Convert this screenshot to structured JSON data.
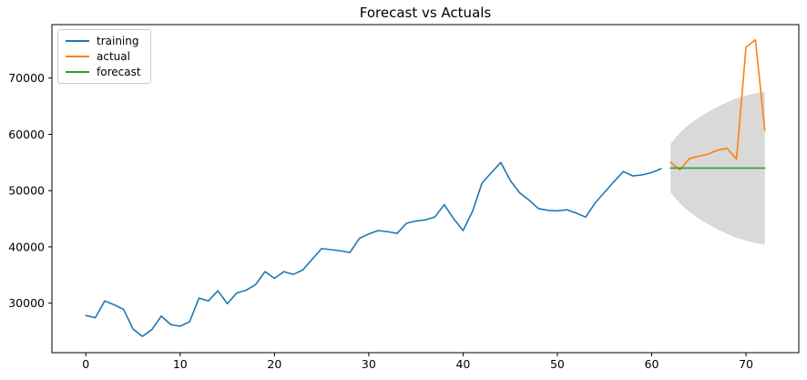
{
  "chart_data": {
    "type": "line",
    "title": "Forecast vs Actuals",
    "xlabel": "",
    "ylabel": "",
    "grid": false,
    "xlim": [
      -3.6,
      75.6
    ],
    "ylim": [
      21200,
      79500
    ],
    "xticks": [
      0,
      10,
      20,
      30,
      40,
      50,
      60,
      70
    ],
    "yticks": [
      30000,
      40000,
      50000,
      60000,
      70000
    ],
    "legend": {
      "position": "upper-left",
      "entries": [
        "training",
        "actual",
        "forecast"
      ]
    },
    "series": [
      {
        "name": "training",
        "color": "#1f77b4",
        "x_start": 0,
        "values": [
          27800,
          27400,
          30400,
          29700,
          28900,
          25400,
          24100,
          25300,
          27700,
          26200,
          25900,
          26700,
          30900,
          30400,
          32200,
          29900,
          31800,
          32300,
          33300,
          35600,
          34400,
          35600,
          35100,
          35900,
          37800,
          39700,
          39500,
          39300,
          39000,
          41500,
          42300,
          42900,
          42700,
          42400,
          44200,
          44600,
          44800,
          45300,
          47500,
          45000,
          42900,
          46300,
          51300,
          53200,
          55000,
          51800,
          49600,
          48300,
          46800,
          46500,
          46400,
          46600,
          46000,
          45300,
          47800,
          49700,
          51600,
          53400,
          52600,
          52800,
          53200,
          53900
        ]
      },
      {
        "name": "actual",
        "color": "#ff7f0e",
        "x_start": 62,
        "values": [
          55000,
          53700,
          55700,
          56100,
          56500,
          57200,
          57500,
          55600,
          75500,
          76800,
          60700
        ]
      },
      {
        "name": "forecast",
        "color": "#2ca02c",
        "x_start": 62,
        "values": [
          54000,
          54000,
          54000,
          54000,
          54000,
          54000,
          54000,
          54000,
          54000,
          54000,
          54000
        ]
      }
    ],
    "confidence_interval": {
      "x_start": 62,
      "fill_color": "#000000",
      "fill_opacity": 0.15,
      "upper": [
        58300,
        60300,
        61800,
        63000,
        64000,
        64900,
        65700,
        66400,
        66900,
        67300,
        67600
      ],
      "lower": [
        49700,
        47700,
        46200,
        45000,
        44000,
        43100,
        42300,
        41600,
        41100,
        40700,
        40400
      ]
    }
  }
}
